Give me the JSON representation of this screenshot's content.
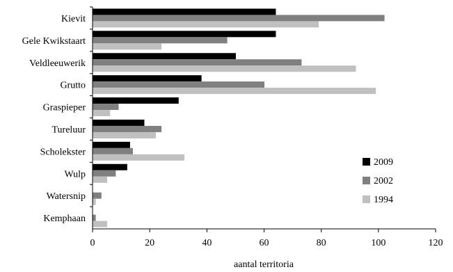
{
  "chart_data": {
    "type": "bar",
    "orientation": "horizontal",
    "categories": [
      "Kievit",
      "Gele Kwikstaart",
      "Veldleeuwerik",
      "Grutto",
      "Graspieper",
      "Tureluur",
      "Scholekster",
      "Wulp",
      "Watersnip",
      "Kemphaan"
    ],
    "series": [
      {
        "name": "2009",
        "color": "#000000",
        "values": [
          64,
          64,
          50,
          38,
          30,
          18,
          13,
          12,
          0,
          0
        ]
      },
      {
        "name": "2002",
        "color": "#808080",
        "values": [
          102,
          47,
          73,
          60,
          9,
          24,
          14,
          8,
          3,
          1
        ]
      },
      {
        "name": "1994",
        "color": "#c0c0c0",
        "values": [
          79,
          24,
          92,
          99,
          6,
          22,
          32,
          5,
          1,
          5
        ]
      }
    ],
    "xlabel": "aantal territoria",
    "ylabel": "",
    "xlim": [
      0,
      120
    ],
    "xticks": [
      "0",
      "20",
      "40",
      "60",
      "80",
      "100",
      "120"
    ],
    "grid": false,
    "legend_position": "lower-right"
  }
}
